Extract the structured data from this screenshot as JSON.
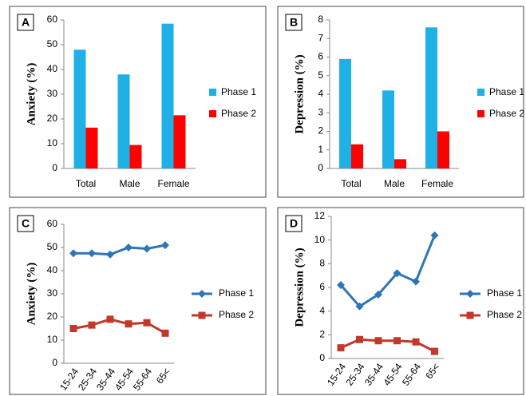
{
  "chart_data": [
    {
      "type": "bar",
      "panel": "A",
      "y_label": "Anxiety (%)",
      "categories": [
        "Total",
        "Male",
        "Female"
      ],
      "series": [
        {
          "name": "Phase 1",
          "color": "#1fb0e6",
          "values": [
            48,
            38,
            58.5
          ]
        },
        {
          "name": "Phase 2",
          "color": "#ff0000",
          "values": [
            16.5,
            9.5,
            21.5
          ]
        }
      ],
      "ylim": [
        0,
        60
      ],
      "yticks": [
        0,
        10,
        20,
        30,
        40,
        50,
        60
      ]
    },
    {
      "type": "bar",
      "panel": "B",
      "y_label": "Depression (%)",
      "categories": [
        "Total",
        "Male",
        "Female"
      ],
      "series": [
        {
          "name": "Phase 1",
          "color": "#1fb0e6",
          "values": [
            5.9,
            4.2,
            7.6
          ]
        },
        {
          "name": "Phase 2",
          "color": "#ff0000",
          "values": [
            1.3,
            0.5,
            2.0
          ]
        }
      ],
      "ylim": [
        0,
        8
      ],
      "yticks": [
        0,
        1,
        2,
        3,
        4,
        5,
        6,
        7,
        8
      ]
    },
    {
      "type": "line",
      "panel": "C",
      "y_label": "Anxiety (%)",
      "categories": [
        "15-24",
        "25-34",
        "35-44",
        "45-54",
        "55-64",
        "65<"
      ],
      "series": [
        {
          "name": "Phase 1",
          "color": "#2e75b6",
          "marker": "diamond",
          "values": [
            47.5,
            47.5,
            47,
            50,
            49.5,
            51
          ]
        },
        {
          "name": "Phase 2",
          "color": "#c0392b",
          "marker": "square",
          "values": [
            15,
            16.5,
            19,
            17,
            17.5,
            13
          ]
        }
      ],
      "ylim": [
        0,
        60
      ],
      "yticks": [
        0,
        10,
        20,
        30,
        40,
        50,
        60
      ]
    },
    {
      "type": "line",
      "panel": "D",
      "y_label": "Depression (%)",
      "categories": [
        "15-24",
        "25-34",
        "35-44",
        "45-54",
        "55-64",
        "65<"
      ],
      "series": [
        {
          "name": "Phase 1",
          "color": "#2e75b6",
          "marker": "diamond",
          "values": [
            6.2,
            4.4,
            5.4,
            7.2,
            6.5,
            10.4
          ]
        },
        {
          "name": "Phase 2",
          "color": "#c0392b",
          "marker": "square",
          "values": [
            0.9,
            1.6,
            1.5,
            1.5,
            1.4,
            0.6
          ]
        }
      ],
      "ylim": [
        0,
        12
      ],
      "yticks": [
        0,
        2,
        4,
        6,
        8,
        10,
        12
      ]
    }
  ]
}
